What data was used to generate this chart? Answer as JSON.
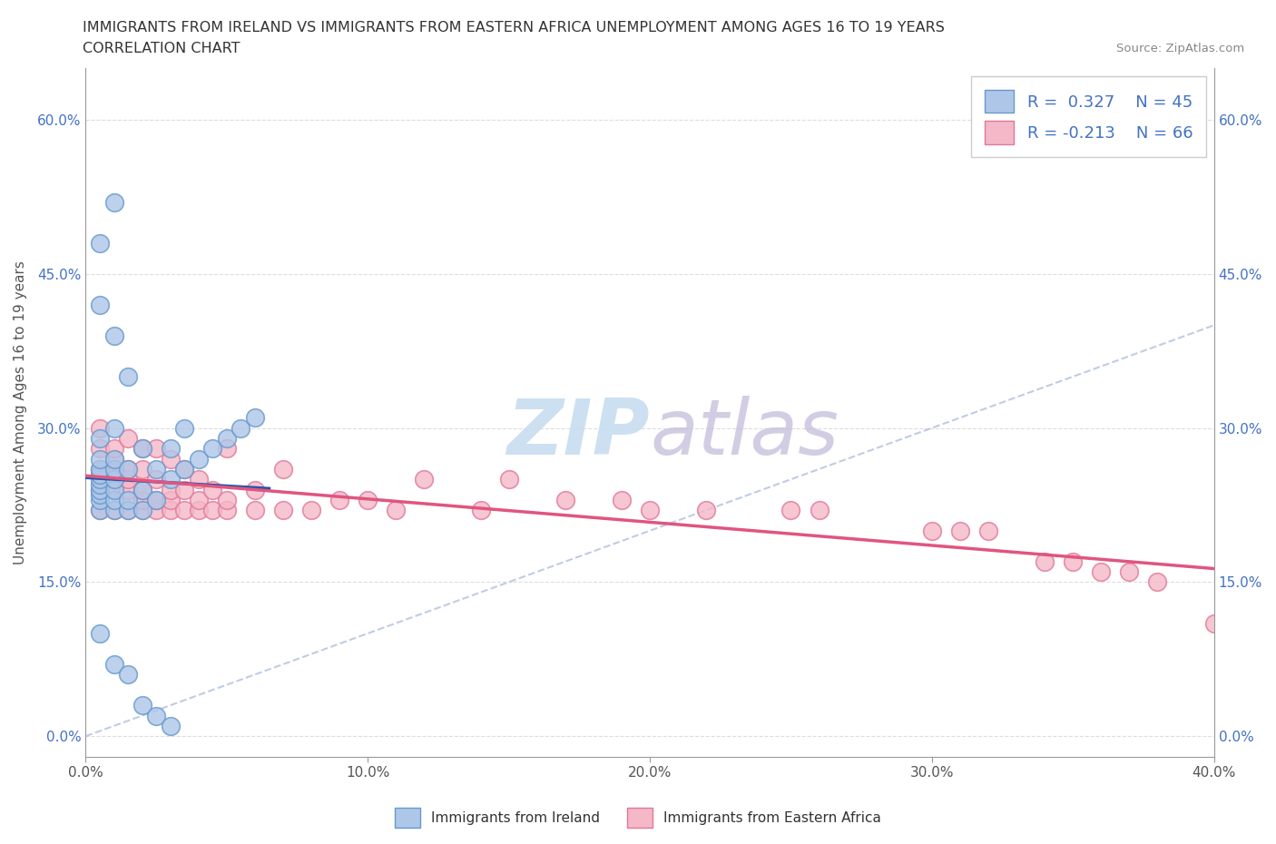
{
  "title_line1": "IMMIGRANTS FROM IRELAND VS IMMIGRANTS FROM EASTERN AFRICA UNEMPLOYMENT AMONG AGES 16 TO 19 YEARS",
  "title_line2": "CORRELATION CHART",
  "source": "Source: ZipAtlas.com",
  "ylabel": "Unemployment Among Ages 16 to 19 years",
  "xlim": [
    0.0,
    0.4
  ],
  "ylim": [
    -0.02,
    0.65
  ],
  "x_ticks": [
    0.0,
    0.1,
    0.2,
    0.3,
    0.4
  ],
  "y_ticks": [
    0.0,
    0.15,
    0.3,
    0.45,
    0.6
  ],
  "ireland_R": 0.327,
  "ireland_N": 45,
  "eastern_africa_R": -0.213,
  "eastern_africa_N": 66,
  "ireland_color": "#aec6e8",
  "ireland_edge_color": "#6699cc",
  "eastern_africa_color": "#f4b8c8",
  "eastern_africa_edge_color": "#e07898",
  "ireland_trend_color": "#2255aa",
  "eastern_africa_trend_color": "#e05580",
  "diagonal_color": "#b0c0dd",
  "tick_color_blue": "#4472c4",
  "watermark_color": "#c8ddf0",
  "legend_label_ireland": "Immigrants from Ireland",
  "legend_label_eastern_africa": "Immigrants from Eastern Africa",
  "ireland_x": [
    0.005,
    0.005,
    0.005,
    0.005,
    0.005,
    0.005,
    0.005,
    0.005,
    0.005,
    0.005,
    0.01,
    0.01,
    0.01,
    0.01,
    0.01,
    0.01,
    0.01,
    0.015,
    0.015,
    0.015,
    0.015,
    0.02,
    0.02,
    0.02,
    0.025,
    0.025,
    0.03,
    0.03,
    0.035,
    0.035,
    0.04,
    0.045,
    0.05,
    0.055,
    0.06,
    0.005,
    0.005,
    0.01,
    0.01,
    0.005,
    0.01,
    0.015,
    0.02,
    0.025,
    0.03
  ],
  "ireland_y": [
    0.22,
    0.23,
    0.235,
    0.24,
    0.245,
    0.25,
    0.255,
    0.26,
    0.27,
    0.29,
    0.22,
    0.23,
    0.24,
    0.25,
    0.26,
    0.27,
    0.3,
    0.22,
    0.23,
    0.26,
    0.35,
    0.22,
    0.24,
    0.28,
    0.23,
    0.26,
    0.25,
    0.28,
    0.26,
    0.3,
    0.27,
    0.28,
    0.29,
    0.3,
    0.31,
    0.42,
    0.48,
    0.39,
    0.52,
    0.1,
    0.07,
    0.06,
    0.03,
    0.02,
    0.01
  ],
  "eastern_africa_x": [
    0.005,
    0.005,
    0.005,
    0.005,
    0.005,
    0.01,
    0.01,
    0.01,
    0.01,
    0.01,
    0.01,
    0.015,
    0.015,
    0.015,
    0.015,
    0.015,
    0.02,
    0.02,
    0.02,
    0.02,
    0.02,
    0.025,
    0.025,
    0.025,
    0.025,
    0.03,
    0.03,
    0.03,
    0.03,
    0.035,
    0.035,
    0.035,
    0.04,
    0.04,
    0.04,
    0.045,
    0.045,
    0.05,
    0.05,
    0.05,
    0.06,
    0.06,
    0.07,
    0.07,
    0.08,
    0.09,
    0.1,
    0.11,
    0.12,
    0.14,
    0.15,
    0.17,
    0.19,
    0.2,
    0.22,
    0.25,
    0.26,
    0.3,
    0.31,
    0.32,
    0.34,
    0.35,
    0.36,
    0.37,
    0.38,
    0.4
  ],
  "eastern_africa_y": [
    0.22,
    0.24,
    0.26,
    0.28,
    0.3,
    0.22,
    0.24,
    0.25,
    0.26,
    0.27,
    0.28,
    0.22,
    0.24,
    0.25,
    0.26,
    0.29,
    0.22,
    0.23,
    0.24,
    0.26,
    0.28,
    0.22,
    0.23,
    0.25,
    0.28,
    0.22,
    0.23,
    0.24,
    0.27,
    0.22,
    0.24,
    0.26,
    0.22,
    0.23,
    0.25,
    0.22,
    0.24,
    0.22,
    0.23,
    0.28,
    0.22,
    0.24,
    0.22,
    0.26,
    0.22,
    0.23,
    0.23,
    0.22,
    0.25,
    0.22,
    0.25,
    0.23,
    0.23,
    0.22,
    0.22,
    0.22,
    0.22,
    0.2,
    0.2,
    0.2,
    0.17,
    0.17,
    0.16,
    0.16,
    0.15,
    0.11
  ]
}
